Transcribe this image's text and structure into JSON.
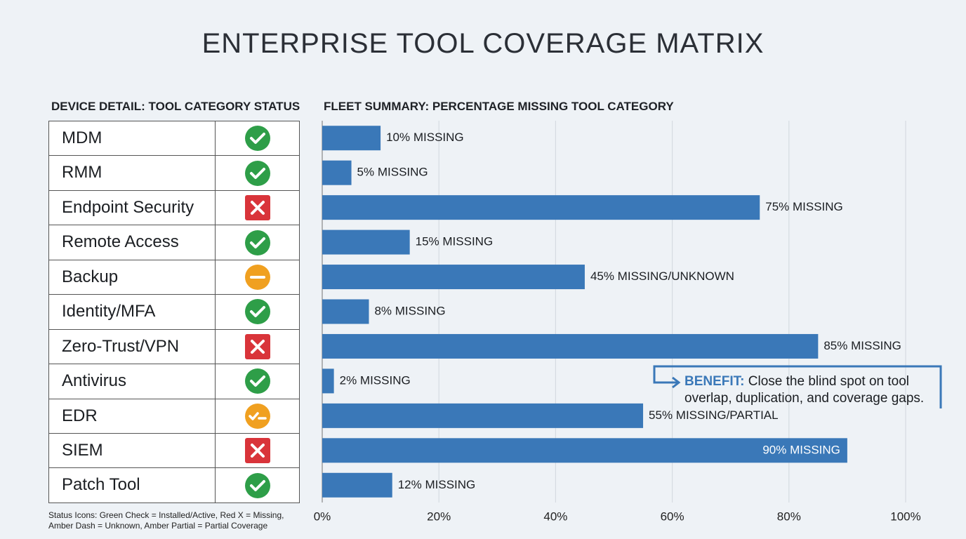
{
  "title": "ENTERPRISE TOOL COVERAGE MATRIX",
  "table": {
    "title": "DEVICE DETAIL: TOOL CATEGORY STATUS",
    "rows": [
      "MDM",
      "RMM",
      "Endpoint Security",
      "Remote Access",
      "Backup",
      "Identity/MFA",
      "Zero-Trust/VPN",
      "Antivirus",
      "EDR",
      "SIEM",
      "Patch Tool"
    ],
    "note": "Status Icons: Green Check = Installed/Active, Red X = Missing, Amber Dash = Unknown, Amber Partial = Partial Coverage"
  },
  "chart_data": {
    "type": "barh",
    "title": "FLEET SUMMARY: PERCENTAGE MISSING TOOL CATEGORY",
    "values": [
      10,
      5,
      75,
      15,
      45,
      8,
      85,
      2,
      55,
      90,
      12
    ],
    "value_labels": [
      "10% MISSING",
      "5% MISSING",
      "75% MISSING",
      "15% MISSING",
      "45% MISSING/UNKNOWN",
      "8% MISSING",
      "85% MISSING",
      "2% MISSING",
      "55% MISSING/PARTIAL",
      "90% MISSING",
      "12% MISSING"
    ],
    "color": "#3a78b8",
    "xlim": [
      0,
      100
    ],
    "xticks": [
      {
        "value": 0,
        "label": "0%"
      },
      {
        "value": 20,
        "label": "20%"
      },
      {
        "value": 40,
        "label": "40%"
      },
      {
        "value": 60,
        "label": "60%"
      },
      {
        "value": 80,
        "label": "80%"
      },
      {
        "value": 100,
        "label": "100%"
      }
    ],
    "grid": true,
    "annotation": {
      "label": "BENEFIT:",
      "text": "Close the blind spot on tool overlap, duplication, and coverage gaps."
    }
  }
}
